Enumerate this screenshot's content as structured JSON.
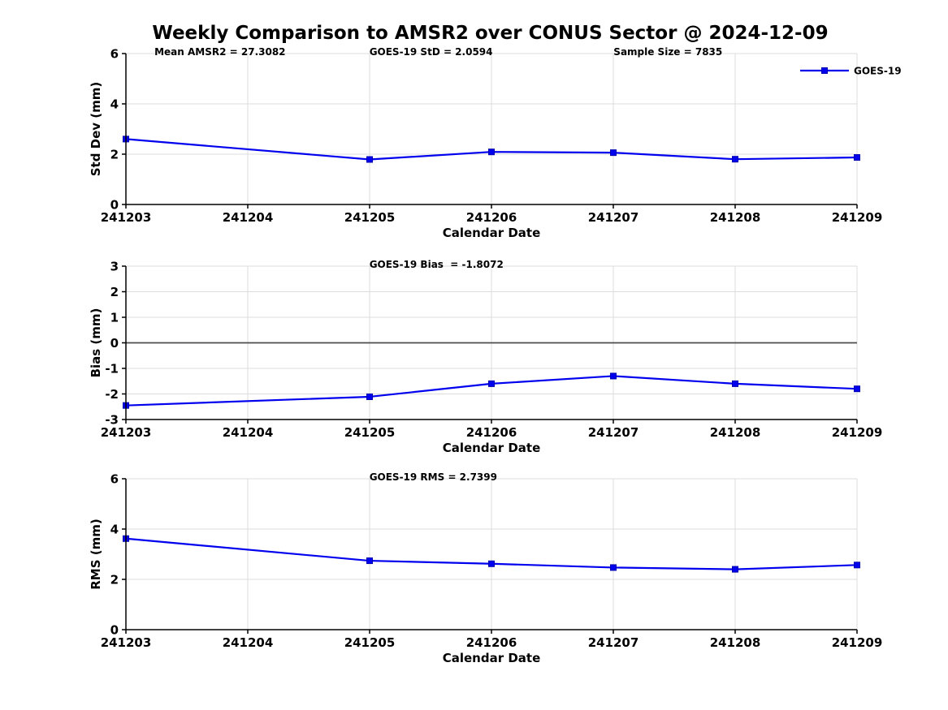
{
  "header": {
    "title": "Weekly Comparison to AMSR2 over CONUS Sector @ 2024-12-09"
  },
  "colors": {
    "line": "#0000EE",
    "marker_edge": "#0000B0",
    "grid": "#DCDCDC",
    "zero_line": "#4D4D4D",
    "axis": "#000000",
    "text": "#000000",
    "background": "#FFFFFF"
  },
  "chart_data": [
    {
      "type": "line",
      "ylabel": "Std Dev (mm)",
      "xlabel": "Calendar Date",
      "ylim": [
        0,
        6
      ],
      "yticks": [
        0,
        2,
        4,
        6
      ],
      "grid": true,
      "categories": [
        "241203",
        "241204",
        "241205",
        "241206",
        "241207",
        "241208",
        "241209"
      ],
      "annotations": [
        "Mean AMSR2 = 27.3082",
        "GOES-19 StD = 2.0594",
        "Sample Size = 7835"
      ],
      "legend": {
        "position": "upper-right",
        "label": "GOES-19"
      },
      "series": [
        {
          "name": "GOES-19",
          "marker": "square",
          "points": [
            {
              "x": "241203",
              "y": 2.6
            },
            {
              "x": "241205",
              "y": 1.79
            },
            {
              "x": "241206",
              "y": 2.09
            },
            {
              "x": "241207",
              "y": 2.06
            },
            {
              "x": "241208",
              "y": 1.8
            },
            {
              "x": "241209",
              "y": 1.87
            }
          ]
        }
      ]
    },
    {
      "type": "line",
      "ylabel": "Bias (mm)",
      "xlabel": "Calendar Date",
      "ylim": [
        -3,
        3
      ],
      "yticks": [
        3,
        2,
        1,
        0,
        -1,
        -2,
        -3
      ],
      "grid": true,
      "zero_line": true,
      "categories": [
        "241203",
        "241204",
        "241205",
        "241206",
        "241207",
        "241208",
        "241209"
      ],
      "annotations": [
        "GOES-19 Bias  = -1.8072"
      ],
      "series": [
        {
          "name": "GOES-19",
          "marker": "square",
          "points": [
            {
              "x": "241203",
              "y": -2.45
            },
            {
              "x": "241205",
              "y": -2.11
            },
            {
              "x": "241206",
              "y": -1.6
            },
            {
              "x": "241207",
              "y": -1.3
            },
            {
              "x": "241208",
              "y": -1.6
            },
            {
              "x": "241209",
              "y": -1.8
            }
          ]
        }
      ]
    },
    {
      "type": "line",
      "ylabel": "RMS (mm)",
      "xlabel": "Calendar Date",
      "ylim": [
        0,
        6
      ],
      "yticks": [
        0,
        2,
        4,
        6
      ],
      "grid": true,
      "categories": [
        "241203",
        "241204",
        "241205",
        "241206",
        "241207",
        "241208",
        "241209"
      ],
      "annotations": [
        "GOES-19 RMS = 2.7399"
      ],
      "series": [
        {
          "name": "GOES-19",
          "marker": "square",
          "points": [
            {
              "x": "241203",
              "y": 3.62
            },
            {
              "x": "241205",
              "y": 2.74
            },
            {
              "x": "241206",
              "y": 2.62
            },
            {
              "x": "241207",
              "y": 2.47
            },
            {
              "x": "241208",
              "y": 2.4
            },
            {
              "x": "241209",
              "y": 2.57
            }
          ]
        }
      ]
    }
  ]
}
